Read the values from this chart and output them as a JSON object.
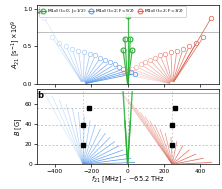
{
  "xlabel": "$f_{21}$ [MHz] – ~65.2 THz",
  "ylabel_a": "$A_{21}$ [s$^{-1}$] $\\times10^9$",
  "ylabel_b": "$B$ [G]",
  "xlim": [
    -500,
    500
  ],
  "ylim_a": [
    0,
    1.05
  ],
  "ylim_b": [
    0,
    75
  ],
  "label_a": "a",
  "label_b": "b",
  "green_label": "M1$_{a0}$ (l=0; J=1/2)",
  "blue_label": "M1$_{a0}$ (l=2; F=5/2)",
  "red_label": "M1$_{a0}$ (l=2; F=3/2)",
  "green_color": "#22b030",
  "blue_color": "#5599ee",
  "red_color": "#dd6655",
  "hlines_dashed": [
    19.5,
    39.0,
    55.5
  ],
  "hline_solid": 70.5,
  "vlines_dashed": [
    -245,
    0,
    245
  ],
  "blue_conv_f": -245,
  "red_conv_f": 245,
  "green_conv_f": 0,
  "blue_fan": [
    [
      -460,
      0.88
    ],
    [
      -415,
      0.62
    ],
    [
      -375,
      0.54
    ],
    [
      -338,
      0.5
    ],
    [
      -303,
      0.46
    ],
    [
      -270,
      0.44
    ],
    [
      -238,
      0.42
    ],
    [
      -207,
      0.4
    ],
    [
      -178,
      0.38
    ],
    [
      -150,
      0.35
    ],
    [
      -123,
      0.32
    ],
    [
      -97,
      0.29
    ],
    [
      -72,
      0.26
    ],
    [
      -48,
      0.23
    ],
    [
      -25,
      0.2
    ],
    [
      -3,
      0.18
    ],
    [
      18,
      0.16
    ],
    [
      38,
      0.14
    ]
  ],
  "red_fan": [
    [
      460,
      0.88
    ],
    [
      415,
      0.62
    ],
    [
      375,
      0.54
    ],
    [
      338,
      0.5
    ],
    [
      303,
      0.46
    ],
    [
      270,
      0.44
    ],
    [
      238,
      0.42
    ],
    [
      207,
      0.4
    ],
    [
      178,
      0.38
    ],
    [
      150,
      0.35
    ],
    [
      123,
      0.32
    ],
    [
      97,
      0.29
    ],
    [
      72,
      0.26
    ],
    [
      48,
      0.23
    ],
    [
      25,
      0.2
    ],
    [
      3,
      0.18
    ],
    [
      -18,
      0.16
    ],
    [
      -38,
      0.14
    ]
  ],
  "green_fan": [
    [
      -25,
      0.45
    ],
    [
      -15,
      0.6
    ],
    [
      0,
      0.9
    ],
    [
      15,
      0.6
    ],
    [
      25,
      0.45
    ]
  ],
  "black_squares": [
    [
      -245,
      19.5,
      "blue"
    ],
    [
      -245,
      39.0,
      "blue"
    ],
    [
      -210,
      55.5,
      "blue"
    ],
    [
      245,
      19.5,
      "red"
    ],
    [
      245,
      39.0,
      "red"
    ],
    [
      260,
      55.5,
      "red"
    ]
  ],
  "background_color": "#ffffff",
  "yticks_a": [
    0.0,
    0.5,
    1.0
  ],
  "yticks_b": [
    0,
    20,
    40,
    60
  ],
  "xticks": [
    -400,
    -200,
    0,
    200,
    400
  ]
}
